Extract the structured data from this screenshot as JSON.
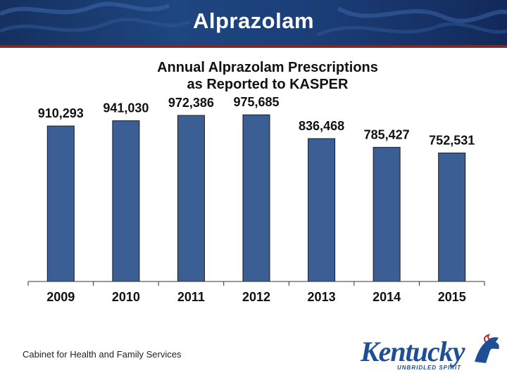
{
  "slide": {
    "title": "Alprazolam",
    "footer": "Cabinet for Health and Family Services"
  },
  "logo": {
    "word": "Kentucky",
    "tagline": "UNBRIDLED SPIRIT"
  },
  "colors": {
    "header": "#1e4680",
    "bar": "#3b5f95",
    "bar_stroke": "#1a1a1a",
    "accent_rule": "#7a2a2a"
  },
  "chart_data": {
    "type": "bar",
    "title": "Annual Alprazolam Prescriptions as Reported to KASPER",
    "title_lines": [
      "Annual Alprazolam Prescriptions",
      "as Reported to KASPER"
    ],
    "categories": [
      "2009",
      "2010",
      "2011",
      "2012",
      "2013",
      "2014",
      "2015"
    ],
    "values": [
      910293,
      941030,
      972386,
      975685,
      836468,
      785427,
      752531
    ],
    "labels": [
      "910,293",
      "941,030",
      "972,386",
      "975,685",
      "836,468",
      "785,427",
      "752,531"
    ],
    "xlabel": "",
    "ylabel": "",
    "ylim": [
      0,
      1030000
    ],
    "grid": false,
    "legend": "none"
  }
}
